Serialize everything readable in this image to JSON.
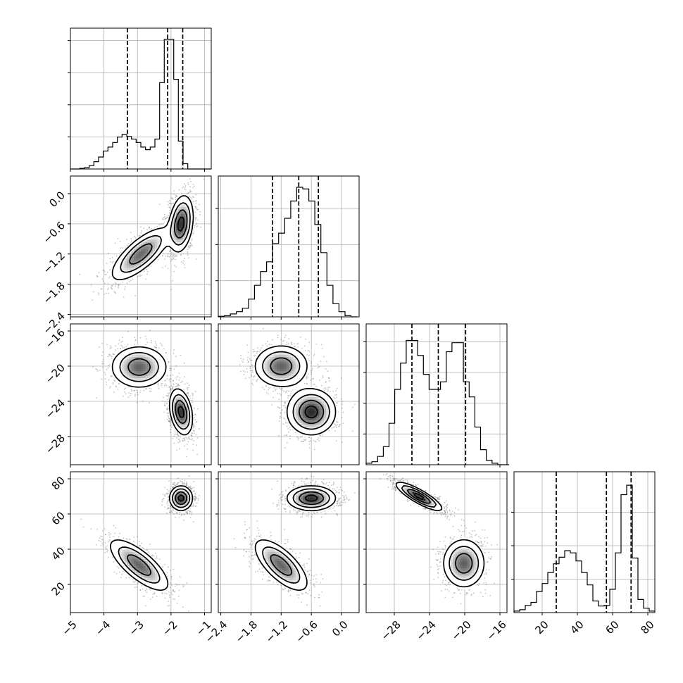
{
  "chart_data": {
    "type": "corner",
    "title": "",
    "parameters": [
      {
        "range": [
          -5.0,
          -0.8
        ],
        "x_ticks": [
          "−5",
          "−4",
          "−3",
          "−2",
          "−1"
        ],
        "x_tick_values": [
          -5,
          -4,
          -3,
          -2,
          -1
        ],
        "y_ticks": [],
        "y_tick_values": []
      },
      {
        "range": [
          -2.45,
          0.35
        ],
        "x_ticks": [
          "−2.4",
          "−1.8",
          "−1.2",
          "−0.6",
          "0.0"
        ],
        "x_tick_values": [
          -2.4,
          -1.8,
          -1.2,
          -0.6,
          0.0
        ],
        "y_ticks": [
          "0.0",
          "−0.6",
          "−1.2",
          "−1.8",
          "−2.4"
        ],
        "y_tick_values": [
          0.0,
          -0.6,
          -1.2,
          -1.8,
          -2.4
        ]
      },
      {
        "range": [
          -31.2,
          -15.2
        ],
        "x_ticks": [
          "−28",
          "−24",
          "−20",
          "−16"
        ],
        "x_tick_values": [
          -28,
          -24,
          -20,
          -16
        ],
        "y_ticks": [
          "−16",
          "−20",
          "−24",
          "−28"
        ],
        "y_tick_values": [
          -16,
          -20,
          -24,
          -28
        ]
      },
      {
        "range": [
          4,
          84
        ],
        "x_ticks": [
          "20",
          "40",
          "60",
          "80"
        ],
        "x_tick_values": [
          20,
          40,
          60,
          80
        ],
        "y_ticks": [
          "80",
          "60",
          "40",
          "20"
        ],
        "y_tick_values": [
          80,
          60,
          40,
          20
        ]
      }
    ],
    "histograms": [
      {
        "param": 0,
        "bin_width": 0.14,
        "bins": [
          -5.0,
          -4.86,
          -4.72,
          -4.58,
          -4.44,
          -4.3,
          -4.16,
          -4.02,
          -3.88,
          -3.74,
          -3.6,
          -3.46,
          -3.32,
          -3.18,
          -3.04,
          -2.9,
          -2.76,
          -2.62,
          -2.48,
          -2.34,
          -2.2,
          -2.06,
          -1.92,
          -1.78,
          -1.64,
          -1.5,
          -1.36,
          -1.22,
          -1.08,
          -0.94
        ],
        "counts": [
          0,
          0,
          1,
          2,
          5,
          11,
          18,
          27,
          33,
          40,
          48,
          52,
          49,
          45,
          40,
          33,
          29,
          33,
          45,
          130,
          195,
          195,
          135,
          42,
          8,
          0,
          0,
          0,
          0,
          0
        ],
        "ymax": 195,
        "quantiles": [
          -3.3,
          -2.1,
          -1.65
        ],
        "grid_y": [
          0.24,
          0.48,
          0.72,
          0.96
        ]
      },
      {
        "param": 1,
        "bin_width": 0.12,
        "bins": [
          -2.45,
          -2.33,
          -2.21,
          -2.09,
          -1.97,
          -1.85,
          -1.73,
          -1.61,
          -1.49,
          -1.37,
          -1.25,
          -1.13,
          -1.01,
          -0.89,
          -0.77,
          -0.65,
          -0.53,
          -0.41,
          -0.29,
          -0.17,
          -0.05,
          0.07,
          0.19
        ],
        "counts": [
          1,
          2,
          5,
          9,
          15,
          31,
          55,
          79,
          96,
          128,
          146,
          172,
          202,
          226,
          223,
          202,
          161,
          112,
          55,
          23,
          9,
          2,
          0
        ],
        "ymax": 226,
        "quantiles": [
          -1.37,
          -0.85,
          -0.46
        ],
        "grid_y": [
          0.27,
          0.54,
          0.81
        ]
      },
      {
        "param": 2,
        "bin_width": 0.65,
        "bins": [
          -31.2,
          -30.55,
          -29.9,
          -29.25,
          -28.6,
          -27.95,
          -27.3,
          -26.65,
          -26.0,
          -25.35,
          -24.7,
          -24.05,
          -23.4,
          -22.75,
          -22.1,
          -21.45,
          -20.8,
          -20.15,
          -19.5,
          -18.85,
          -18.2,
          -17.55,
          -16.9,
          -16.25,
          -15.6
        ],
        "counts": [
          2,
          4,
          11,
          24,
          55,
          100,
          135,
          165,
          165,
          145,
          120,
          100,
          100,
          110,
          150,
          162,
          162,
          110,
          90,
          50,
          20,
          6,
          2,
          0,
          0
        ],
        "ymax": 172,
        "quantiles": [
          -26.0,
          -23.0,
          -19.9
        ],
        "grid_y": [
          0.23,
          0.46,
          0.69,
          0.92
        ]
      },
      {
        "param": 3,
        "bin_width": 3.2,
        "bins": [
          4,
          7.2,
          10.4,
          13.6,
          16.8,
          20,
          23.2,
          26.4,
          29.6,
          32.8,
          36,
          39.2,
          42.4,
          45.6,
          48.8,
          52,
          55.2,
          58.4,
          61.6,
          64.8,
          68,
          71.2,
          74.4,
          77.6,
          80.8
        ],
        "counts": [
          2,
          4,
          10,
          14,
          29,
          40,
          55,
          67,
          76,
          85,
          82,
          71,
          55,
          38,
          16,
          9,
          10,
          32,
          82,
          162,
          175,
          75,
          18,
          6,
          2
        ],
        "ymax": 178,
        "quantiles": [
          28,
          56.5,
          70.5
        ],
        "grid_y": [
          0.25,
          0.5,
          0.75
        ]
      }
    ],
    "panels_2d": [
      {
        "x": 0,
        "y": 1,
        "modes": [
          {
            "cx": -2.9,
            "cy": -1.2,
            "sx": 0.45,
            "sy": 0.27,
            "rho": 0.75,
            "w": 0.45
          },
          {
            "cx": -1.7,
            "cy": -0.6,
            "sx": 0.18,
            "sy": 0.28,
            "rho": 0.25,
            "w": 0.55
          }
        ]
      },
      {
        "x": 0,
        "y": 2,
        "modes": [
          {
            "cx": -2.95,
            "cy": -20.1,
            "sx": 0.42,
            "sy": 1.2,
            "rho": 0.0,
            "w": 0.45
          },
          {
            "cx": -1.7,
            "cy": -25.2,
            "sx": 0.17,
            "sy": 1.3,
            "rho": -0.3,
            "w": 0.55
          }
        ]
      },
      {
        "x": 1,
        "y": 2,
        "modes": [
          {
            "cx": -1.2,
            "cy": -20.0,
            "sx": 0.27,
            "sy": 1.2,
            "rho": 0.0,
            "w": 0.45
          },
          {
            "cx": -0.6,
            "cy": -25.2,
            "sx": 0.24,
            "sy": 1.3,
            "rho": 0.0,
            "w": 0.55
          }
        ]
      },
      {
        "x": 0,
        "y": 3,
        "modes": [
          {
            "cx": -2.95,
            "cy": 31,
            "sx": 0.45,
            "sy": 7.5,
            "rho": -0.75,
            "w": 0.45
          },
          {
            "cx": -1.7,
            "cy": 69,
            "sx": 0.17,
            "sy": 3.5,
            "rho": 0.0,
            "w": 0.55
          }
        ]
      },
      {
        "x": 1,
        "y": 3,
        "modes": [
          {
            "cx": -1.2,
            "cy": 31,
            "sx": 0.27,
            "sy": 7.5,
            "rho": -0.7,
            "w": 0.45
          },
          {
            "cx": -0.6,
            "cy": 69,
            "sx": 0.24,
            "sy": 3.5,
            "rho": 0.0,
            "w": 0.55
          }
        ]
      },
      {
        "x": 2,
        "y": 3,
        "modes": [
          {
            "cx": -20.1,
            "cy": 32,
            "sx": 1.2,
            "sy": 7.0,
            "rho": 0.0,
            "w": 0.45
          },
          {
            "cx": -25.2,
            "cy": 70,
            "sx": 1.3,
            "sy": 4.0,
            "rho": -0.85,
            "w": 0.55
          }
        ]
      }
    ],
    "contour_levels": [
      0.118,
      0.393,
      0.675,
      0.865
    ],
    "grid": true,
    "legend": "none"
  }
}
